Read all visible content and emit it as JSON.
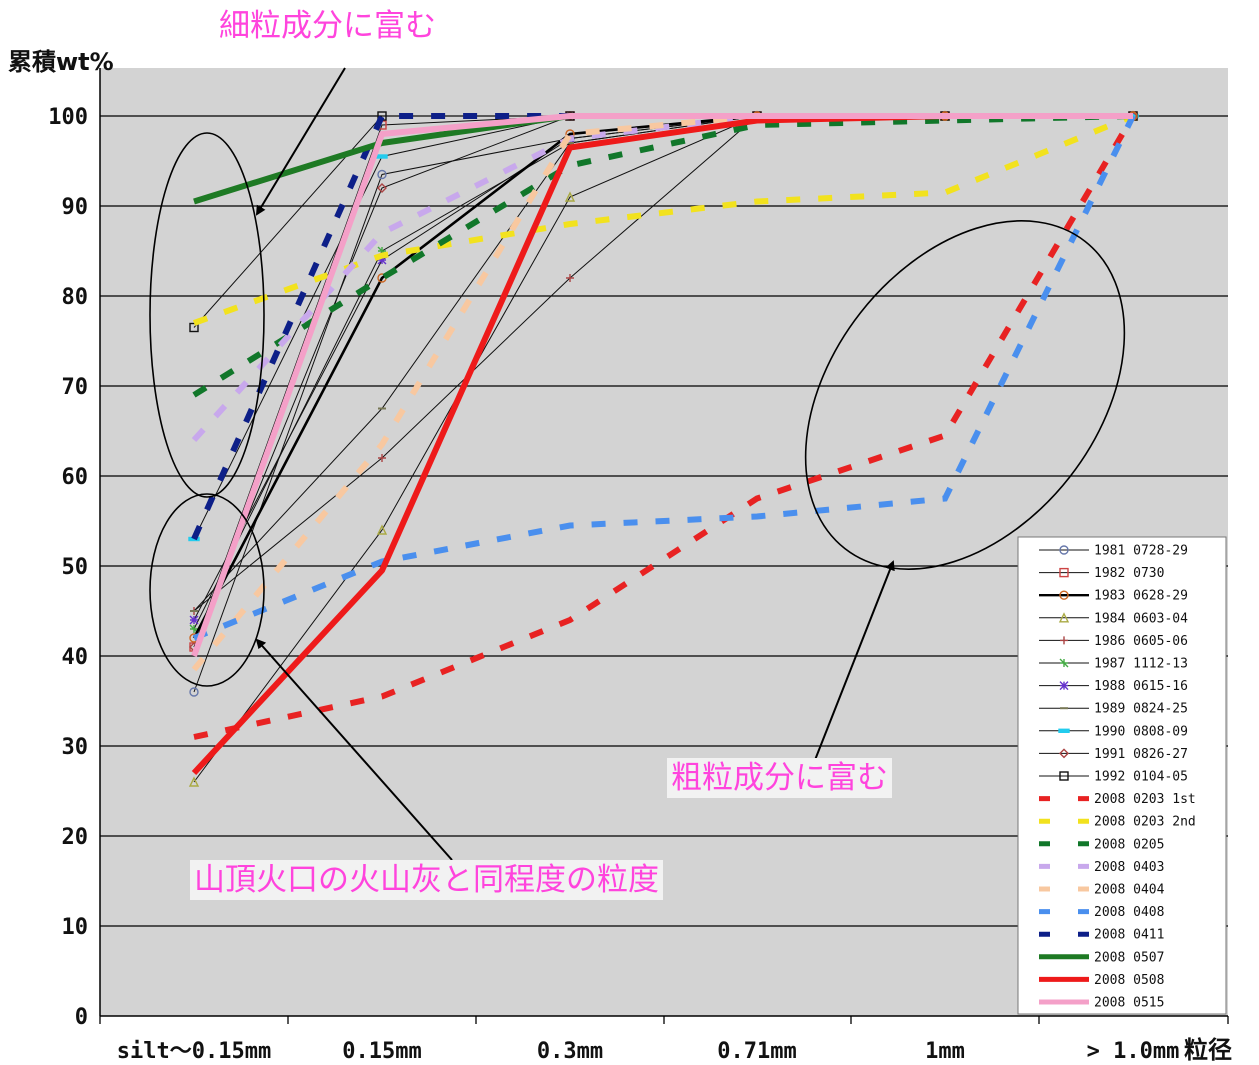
{
  "chart_data": {
    "type": "line",
    "ylabel": "累積wt%",
    "xlabel": "粒径",
    "categories": [
      "silt〜0.15mm",
      "0.15mm",
      "0.3mm",
      "0.71mm",
      "1mm",
      "> 1.0mm"
    ],
    "yticks": [
      "0",
      "10",
      "20",
      "30",
      "40",
      "50",
      "60",
      "70",
      "80",
      "90",
      "100"
    ],
    "ylim": [
      0,
      100
    ],
    "grid": "horizontal",
    "legend_position": "bottom-right",
    "series": [
      {
        "name": "1981 0728-29",
        "style": "thin-marker",
        "marker": "circle",
        "color": "#6677aa",
        "points": [
          [
            0,
            36
          ],
          [
            1,
            93.5
          ],
          [
            2,
            97.5
          ],
          [
            3,
            100
          ],
          [
            4,
            100
          ],
          [
            5,
            100
          ]
        ]
      },
      {
        "name": "1982 0730",
        "style": "thin-marker",
        "marker": "square",
        "color": "#cc4444",
        "points": [
          [
            0,
            41
          ],
          [
            1,
            99
          ],
          [
            2,
            100
          ],
          [
            3,
            100
          ],
          [
            4,
            100
          ],
          [
            5,
            100
          ]
        ]
      },
      {
        "name": "1983 0628-29",
        "style": "thick-marker",
        "marker": "circle",
        "color": "#cc6622",
        "points": [
          [
            0,
            42
          ],
          [
            1,
            82
          ],
          [
            2,
            98
          ],
          [
            3,
            100
          ],
          [
            4,
            100
          ],
          [
            5,
            100
          ]
        ]
      },
      {
        "name": "1984 0603-04",
        "style": "thin-marker",
        "marker": "triangle",
        "color": "#aaaa44",
        "points": [
          [
            0,
            26
          ],
          [
            1,
            54
          ],
          [
            2,
            91
          ],
          [
            3,
            100
          ],
          [
            4,
            100
          ],
          [
            5,
            100
          ]
        ]
      },
      {
        "name": "1986 0605-06",
        "style": "thin-marker",
        "marker": "plus",
        "color": "#aa4444",
        "points": [
          [
            0,
            45
          ],
          [
            1,
            62
          ],
          [
            2,
            82
          ],
          [
            3,
            100
          ],
          [
            4,
            100
          ],
          [
            5,
            100
          ]
        ]
      },
      {
        "name": "1987 1112-13",
        "style": "thin-marker",
        "marker": "star",
        "color": "#44aa44",
        "points": [
          [
            0,
            43
          ],
          [
            1,
            85
          ],
          [
            2,
            97
          ],
          [
            3,
            100
          ],
          [
            4,
            100
          ],
          [
            5,
            100
          ]
        ]
      },
      {
        "name": "1988 0615-16",
        "style": "thin-marker",
        "marker": "asterisk",
        "color": "#6633cc",
        "points": [
          [
            0,
            44
          ],
          [
            1,
            84
          ],
          [
            2,
            97.5
          ],
          [
            3,
            100
          ],
          [
            4,
            100
          ],
          [
            5,
            100
          ]
        ]
      },
      {
        "name": "1989 0824-25",
        "style": "thin-marker",
        "marker": "dash",
        "color": "#777755",
        "points": [
          [
            0,
            45
          ],
          [
            1,
            67.5
          ],
          [
            2,
            97
          ],
          [
            3,
            100
          ],
          [
            4,
            100
          ],
          [
            5,
            100
          ]
        ]
      },
      {
        "name": "1990 0808-09",
        "style": "thin-marker",
        "marker": "bar",
        "color": "#22ccee",
        "points": [
          [
            0,
            53
          ],
          [
            1,
            95.5
          ],
          [
            2,
            100
          ],
          [
            3,
            100
          ],
          [
            4,
            100
          ],
          [
            5,
            100
          ]
        ]
      },
      {
        "name": "1991 0826-27",
        "style": "thin-marker",
        "marker": "diamond",
        "color": "#aa4444",
        "points": [
          [
            0,
            41
          ],
          [
            1,
            92
          ],
          [
            2,
            100
          ],
          [
            3,
            100
          ],
          [
            4,
            100
          ],
          [
            5,
            100
          ]
        ]
      },
      {
        "name": "1992 0104-05",
        "style": "thin-marker",
        "marker": "square",
        "color": "#111111",
        "points": [
          [
            0,
            76.5
          ],
          [
            1,
            100
          ],
          [
            2,
            100
          ],
          [
            3,
            100
          ],
          [
            4,
            100
          ],
          [
            5,
            100
          ]
        ]
      },
      {
        "name": "2008 0203 1st",
        "style": "dash",
        "color": "#e82222",
        "points": [
          [
            0,
            31
          ],
          [
            1,
            35.5
          ],
          [
            2,
            44
          ],
          [
            3,
            57.5
          ],
          [
            4,
            64.5
          ],
          [
            5,
            100
          ]
        ]
      },
      {
        "name": "2008 0203 2nd",
        "style": "dash",
        "color": "#f2e21e",
        "points": [
          [
            0,
            77
          ],
          [
            1,
            84.5
          ],
          [
            2,
            88
          ],
          [
            3,
            90.5
          ],
          [
            4,
            91.5
          ],
          [
            5,
            100
          ]
        ]
      },
      {
        "name": "2008 0205",
        "style": "dash",
        "color": "#11772a",
        "points": [
          [
            0,
            69
          ],
          [
            1,
            82
          ],
          [
            2,
            94.5
          ],
          [
            3,
            99
          ],
          [
            4,
            99.5
          ],
          [
            5,
            100
          ]
        ]
      },
      {
        "name": "2008 0403",
        "style": "dash",
        "color": "#c8a8ec",
        "points": [
          [
            0,
            64
          ],
          [
            1,
            87
          ],
          [
            2,
            97.5
          ],
          [
            3,
            100
          ],
          [
            4,
            100
          ],
          [
            5,
            100
          ]
        ]
      },
      {
        "name": "2008 0404",
        "style": "dash",
        "color": "#f8c8a0",
        "points": [
          [
            0,
            38.5
          ],
          [
            1,
            63.5
          ],
          [
            2,
            98
          ],
          [
            3,
            100
          ],
          [
            4,
            100
          ],
          [
            5,
            100
          ]
        ]
      },
      {
        "name": "2008 0408",
        "style": "dash",
        "color": "#4a8fee",
        "points": [
          [
            0,
            42
          ],
          [
            1,
            50.5
          ],
          [
            2,
            54.5
          ],
          [
            3,
            55.5
          ],
          [
            4,
            57.5
          ],
          [
            5,
            100
          ]
        ]
      },
      {
        "name": "2008 0411",
        "style": "dash",
        "color": "#0d1f88",
        "points": [
          [
            0,
            53
          ],
          [
            1,
            100
          ],
          [
            2,
            100
          ],
          [
            3,
            100
          ],
          [
            4,
            100
          ],
          [
            5,
            100
          ]
        ]
      },
      {
        "name": "2008 0507",
        "style": "thick",
        "color": "#1e7a24",
        "points": [
          [
            0,
            90.5
          ],
          [
            1,
            97
          ],
          [
            2,
            100
          ],
          [
            3,
            100
          ],
          [
            4,
            100
          ],
          [
            5,
            100
          ]
        ]
      },
      {
        "name": "2008 0508",
        "style": "thick",
        "color": "#ee1a1a",
        "points": [
          [
            0,
            27
          ],
          [
            1,
            49.5
          ],
          [
            2,
            96.5
          ],
          [
            3,
            99.5
          ],
          [
            4,
            100
          ],
          [
            5,
            100
          ]
        ]
      },
      {
        "name": "2008 0515",
        "style": "thick",
        "color": "#f4a0c8",
        "points": [
          [
            0,
            40
          ],
          [
            1,
            98
          ],
          [
            2,
            100
          ],
          [
            3,
            100
          ],
          [
            4,
            100
          ],
          [
            5,
            100
          ]
        ]
      }
    ]
  },
  "annotations": {
    "fine": "細粒成分に富む",
    "coarse": "粗粒成分に富む",
    "summit": "山頂火口の火山灰と同程度の粒度"
  }
}
